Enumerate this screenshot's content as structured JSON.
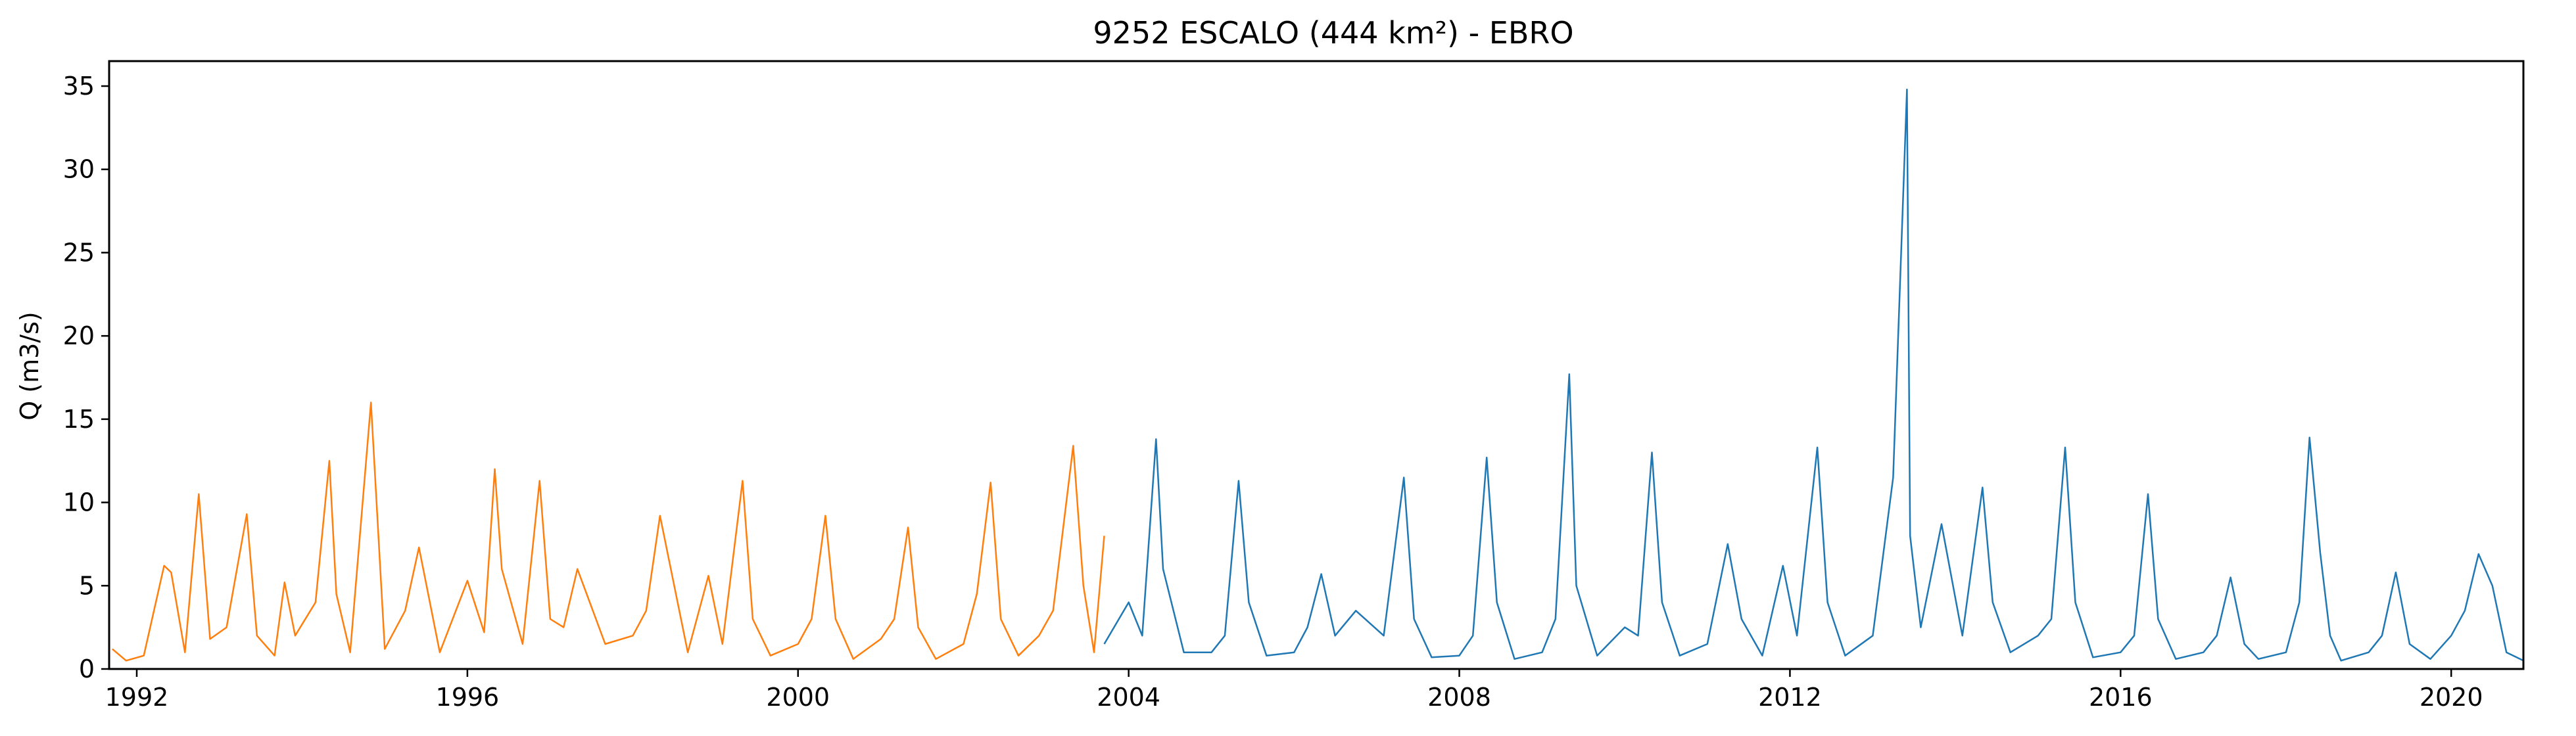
{
  "chart_data": {
    "type": "line",
    "title": "9252 ESCALO (444 km²) - EBRO",
    "xlabel": "",
    "ylabel": "Q (m3/s)",
    "xlim": [
      "1991-09-01",
      "2020-11-15"
    ],
    "ylim": [
      0,
      36.5
    ],
    "grid": false,
    "xticks": [
      "1992",
      "1996",
      "2000",
      "2004",
      "2008",
      "2012",
      "2016",
      "2020"
    ],
    "yticks": [
      "0",
      "5",
      "10",
      "15",
      "20",
      "25",
      "30",
      "35"
    ],
    "series": [
      {
        "color": "#ff7f0e",
        "x": [
          "1991-09-15",
          "1991-11-15",
          "1992-02-01",
          "1992-05-01",
          "1992-06-01",
          "1992-08-01",
          "1992-10-01",
          "1992-11-20",
          "1993-02-01",
          "1993-05-01",
          "1993-06-15",
          "1993-09-01",
          "1993-10-15",
          "1993-12-01",
          "1994-03-01",
          "1994-05-01",
          "1994-06-01",
          "1994-08-01",
          "1994-11-01",
          "1995-01-01",
          "1995-04-01",
          "1995-06-01",
          "1995-09-01",
          "1996-01-01",
          "1996-03-15",
          "1996-05-01",
          "1996-06-01",
          "1996-09-01",
          "1996-11-15",
          "1997-01-01",
          "1997-03-01",
          "1997-05-01",
          "1997-09-01",
          "1998-01-01",
          "1998-03-01",
          "1998-05-01",
          "1998-09-01",
          "1998-12-01",
          "1999-02-01",
          "1999-05-01",
          "1999-06-15",
          "1999-09-01",
          "2000-01-01",
          "2000-03-01",
          "2000-05-01",
          "2000-06-15",
          "2000-09-01",
          "2001-01-01",
          "2001-03-01",
          "2001-05-01",
          "2001-06-15",
          "2001-09-01",
          "2002-01-01",
          "2002-03-01",
          "2002-05-01",
          "2002-06-15",
          "2002-09-01",
          "2002-12-01",
          "2003-02-01",
          "2003-05-01",
          "2003-06-15",
          "2003-08-01",
          "2003-09-15"
        ],
        "values": [
          1.2,
          0.5,
          0.8,
          6.2,
          5.8,
          1.0,
          10.5,
          1.8,
          2.5,
          9.3,
          2.0,
          0.8,
          5.2,
          2.0,
          4.0,
          12.5,
          4.5,
          1.0,
          16.0,
          1.2,
          3.5,
          7.3,
          1.0,
          5.3,
          2.2,
          12.0,
          6.0,
          1.5,
          11.3,
          3.0,
          2.5,
          6.0,
          1.5,
          2.0,
          3.5,
          9.2,
          1.0,
          5.6,
          1.5,
          11.3,
          3.0,
          0.8,
          1.5,
          3.0,
          9.2,
          3.0,
          0.6,
          1.8,
          3.0,
          8.5,
          2.5,
          0.6,
          1.5,
          4.5,
          11.2,
          3.0,
          0.8,
          2.0,
          3.5,
          13.4,
          5.0,
          1.0,
          8.0
        ]
      },
      {
        "color": "#1f77b4",
        "x": [
          "2003-09-15",
          "2004-01-01",
          "2004-03-01",
          "2004-05-01",
          "2004-06-01",
          "2004-09-01",
          "2005-01-01",
          "2005-03-01",
          "2005-05-01",
          "2005-06-15",
          "2005-09-01",
          "2006-01-01",
          "2006-03-01",
          "2006-05-01",
          "2006-07-01",
          "2006-10-01",
          "2007-02-01",
          "2007-05-01",
          "2007-06-15",
          "2007-09-01",
          "2008-01-01",
          "2008-03-01",
          "2008-05-01",
          "2008-06-15",
          "2008-09-01",
          "2009-01-01",
          "2009-03-01",
          "2009-05-01",
          "2009-06-01",
          "2009-09-01",
          "2010-01-01",
          "2010-03-01",
          "2010-05-01",
          "2010-06-15",
          "2010-09-01",
          "2011-01-01",
          "2011-04-01",
          "2011-06-01",
          "2011-09-01",
          "2011-12-01",
          "2012-02-01",
          "2012-05-01",
          "2012-06-15",
          "2012-09-01",
          "2013-01-01",
          "2013-04-01",
          "2013-06-01",
          "2013-06-15",
          "2013-08-01",
          "2013-11-01",
          "2014-02-01",
          "2014-05-01",
          "2014-06-15",
          "2014-09-01",
          "2015-01-01",
          "2015-03-01",
          "2015-05-01",
          "2015-06-15",
          "2015-09-01",
          "2016-01-01",
          "2016-03-01",
          "2016-05-01",
          "2016-06-15",
          "2016-09-01",
          "2017-01-01",
          "2017-03-01",
          "2017-05-01",
          "2017-07-01",
          "2017-09-01",
          "2018-01-01",
          "2018-03-01",
          "2018-04-15",
          "2018-06-01",
          "2018-07-15",
          "2018-09-01",
          "2019-01-01",
          "2019-03-01",
          "2019-05-01",
          "2019-07-01",
          "2019-10-01",
          "2020-01-01",
          "2020-03-01",
          "2020-05-01",
          "2020-07-01",
          "2020-09-01",
          "2020-11-15"
        ],
        "values": [
          1.5,
          4.0,
          2.0,
          13.8,
          6.0,
          1.0,
          1.0,
          2.0,
          11.3,
          4.0,
          0.8,
          1.0,
          2.5,
          5.7,
          2.0,
          3.5,
          2.0,
          11.5,
          3.0,
          0.7,
          0.8,
          2.0,
          12.7,
          4.0,
          0.6,
          1.0,
          3.0,
          17.7,
          5.0,
          0.8,
          2.5,
          2.0,
          13.0,
          4.0,
          0.8,
          1.5,
          7.5,
          3.0,
          0.8,
          6.2,
          2.0,
          13.3,
          4.0,
          0.8,
          2.0,
          11.5,
          34.8,
          8.0,
          2.5,
          8.7,
          2.0,
          10.9,
          4.0,
          1.0,
          2.0,
          3.0,
          13.3,
          4.0,
          0.7,
          1.0,
          2.0,
          10.5,
          3.0,
          0.6,
          1.0,
          2.0,
          5.5,
          1.5,
          0.6,
          1.0,
          4.0,
          13.9,
          7.0,
          2.0,
          0.5,
          1.0,
          2.0,
          5.8,
          1.5,
          0.6,
          2.0,
          3.5,
          6.9,
          5.0,
          1.0,
          0.5
        ]
      }
    ]
  }
}
